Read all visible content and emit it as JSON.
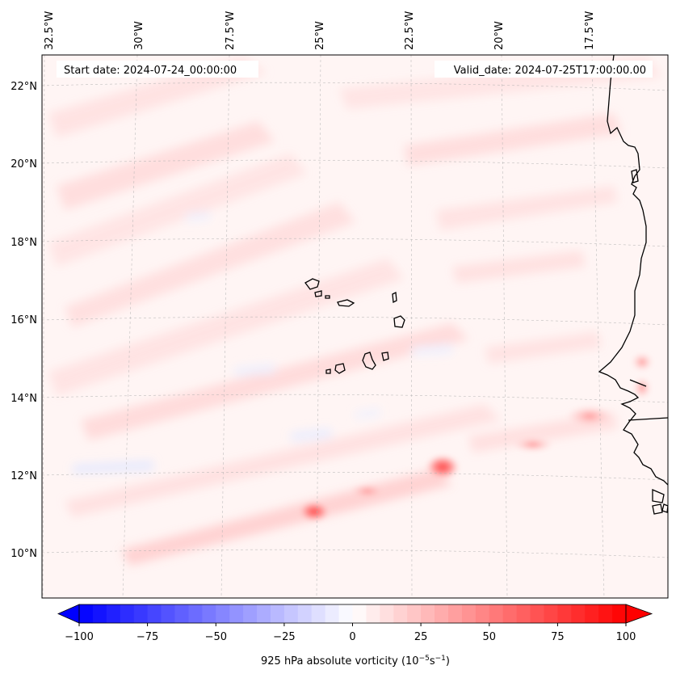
{
  "map": {
    "start_date_text": "Start date: 2024-07-24_00:00:00",
    "valid_date_text": "Valid_date: 2024-07-25T17:00:00.00",
    "lon_labels": [
      "32.5°W",
      "30°W",
      "27.5°W",
      "25°W",
      "22.5°W",
      "20°W",
      "17.5°W"
    ],
    "lat_labels": [
      "22°N",
      "20°N",
      "18°N",
      "16°N",
      "14°N",
      "12°N",
      "10°N"
    ],
    "field": "925 hPa absolute vorticity",
    "features": [
      "Cape Verde islands",
      "West African coastline (Senegal, Gambia, Guinea-Bissau)"
    ],
    "vorticity_maxima": [
      {
        "lat": 12.2,
        "lon": "23.2°W",
        "intensity": "~60"
      },
      {
        "lat": 11.1,
        "lon": "25.2°W",
        "intensity": "~55"
      },
      {
        "lat": 13.5,
        "lon": "18.2°W",
        "intensity": "~30"
      }
    ]
  },
  "colorbar": {
    "min": -100,
    "max": 100,
    "tick_labels": [
      "−100",
      "−75",
      "−50",
      "−25",
      "0",
      "25",
      "50",
      "75",
      "100"
    ],
    "label_prefix": "925 hPa absolute vorticity (10",
    "label_exp1": "−5",
    "label_mid": "s",
    "label_exp2": "−1",
    "label_suffix": ")",
    "colormap": "bwr",
    "low_color": "#0000ff",
    "mid_color": "#ffffff",
    "high_color": "#ff0000",
    "extend": "both"
  }
}
